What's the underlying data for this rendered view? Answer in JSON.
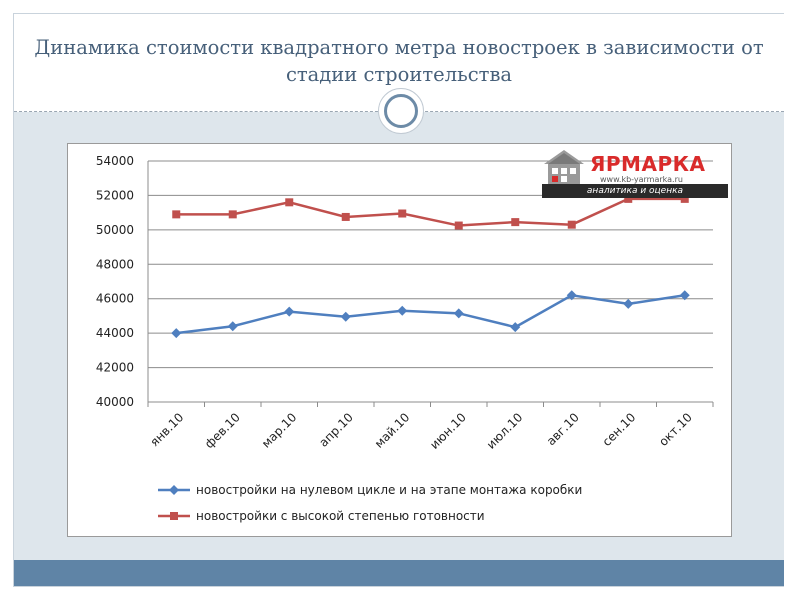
{
  "slide": {
    "title": "Динамика стоимости квадратного метра новостроек в зависимости от стадии строительства",
    "colors": {
      "accent": "#5f84a6",
      "title": "#47607a",
      "background": "#dee6ec"
    }
  },
  "logo": {
    "name": "ЯРМАРКА",
    "url": "www.kb-yarmarka.ru",
    "tagline": "аналитика и оценка",
    "icon": "house-logo-icon"
  },
  "chart_data": {
    "type": "line",
    "title": "",
    "xlabel": "",
    "ylabel": "",
    "categories": [
      "янв.10",
      "фев.10",
      "мар.10",
      "апр.10",
      "май.10",
      "июн.10",
      "июл.10",
      "авг.10",
      "сен.10",
      "окт.10"
    ],
    "ylim": [
      40000,
      54000
    ],
    "yticks": [
      40000,
      42000,
      44000,
      46000,
      48000,
      50000,
      52000,
      54000
    ],
    "grid": true,
    "legend_position": "bottom",
    "series": [
      {
        "name": "новостройки на нулевом цикле и на этапе монтажа коробки",
        "color": "#4f7fbf",
        "marker": "diamond",
        "values": [
          44000,
          44400,
          45250,
          44950,
          45300,
          45150,
          44350,
          46200,
          45700,
          46200
        ]
      },
      {
        "name": "новостройки с высокой степенью готовности",
        "color": "#c0504d",
        "marker": "square",
        "values": [
          50900,
          50900,
          51600,
          50750,
          50950,
          50250,
          50450,
          50300,
          51800,
          51800
        ]
      }
    ]
  }
}
